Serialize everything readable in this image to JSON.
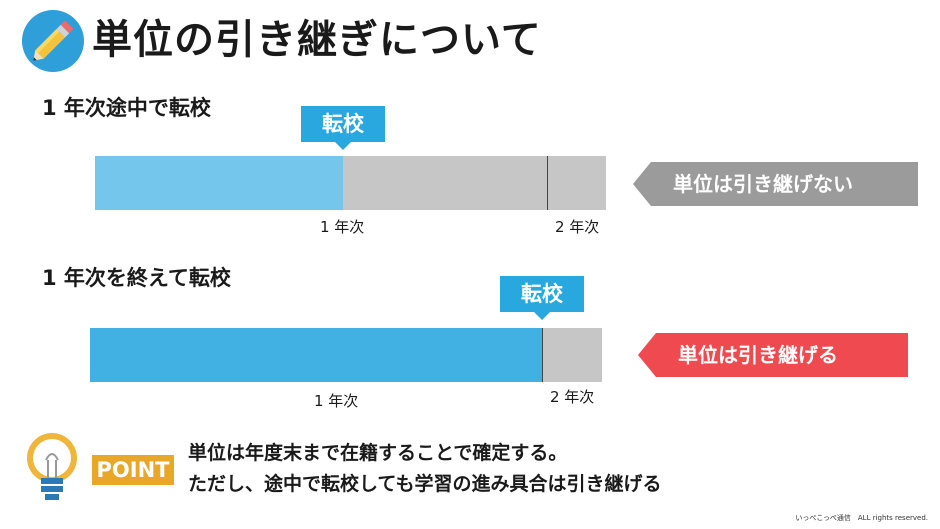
{
  "title": "単位の引き継ぎについて",
  "icons": {
    "header": "pencil-icon",
    "point": "lightbulb-icon"
  },
  "colors": {
    "earned_light": "#74c6ec",
    "earned": "#41b1e3",
    "remaining": "#c6c6c6",
    "tag": "#29a8e0",
    "not_transfer": "#9b9b9b",
    "transfer": "#ef4a4f",
    "point": "#e9a72a"
  },
  "sections": [
    {
      "title": "1 年次途中で転校",
      "tag": "転校",
      "year1": "1 年次",
      "year2": "2 年次",
      "callout": "単位は引き継げない"
    },
    {
      "title": "1 年次を終えて転校",
      "tag": "転校",
      "year1": "1 年次",
      "year2": "2 年次",
      "callout": "単位は引き継げる"
    }
  ],
  "point": {
    "badge": "POINT",
    "line1": "単位は年度末まで在籍することで確定する。",
    "line2": "ただし、途中で転校しても学習の進み具合は引き継げる"
  },
  "credit": "いっぺこっぺ通信　ALL rights reserved."
}
